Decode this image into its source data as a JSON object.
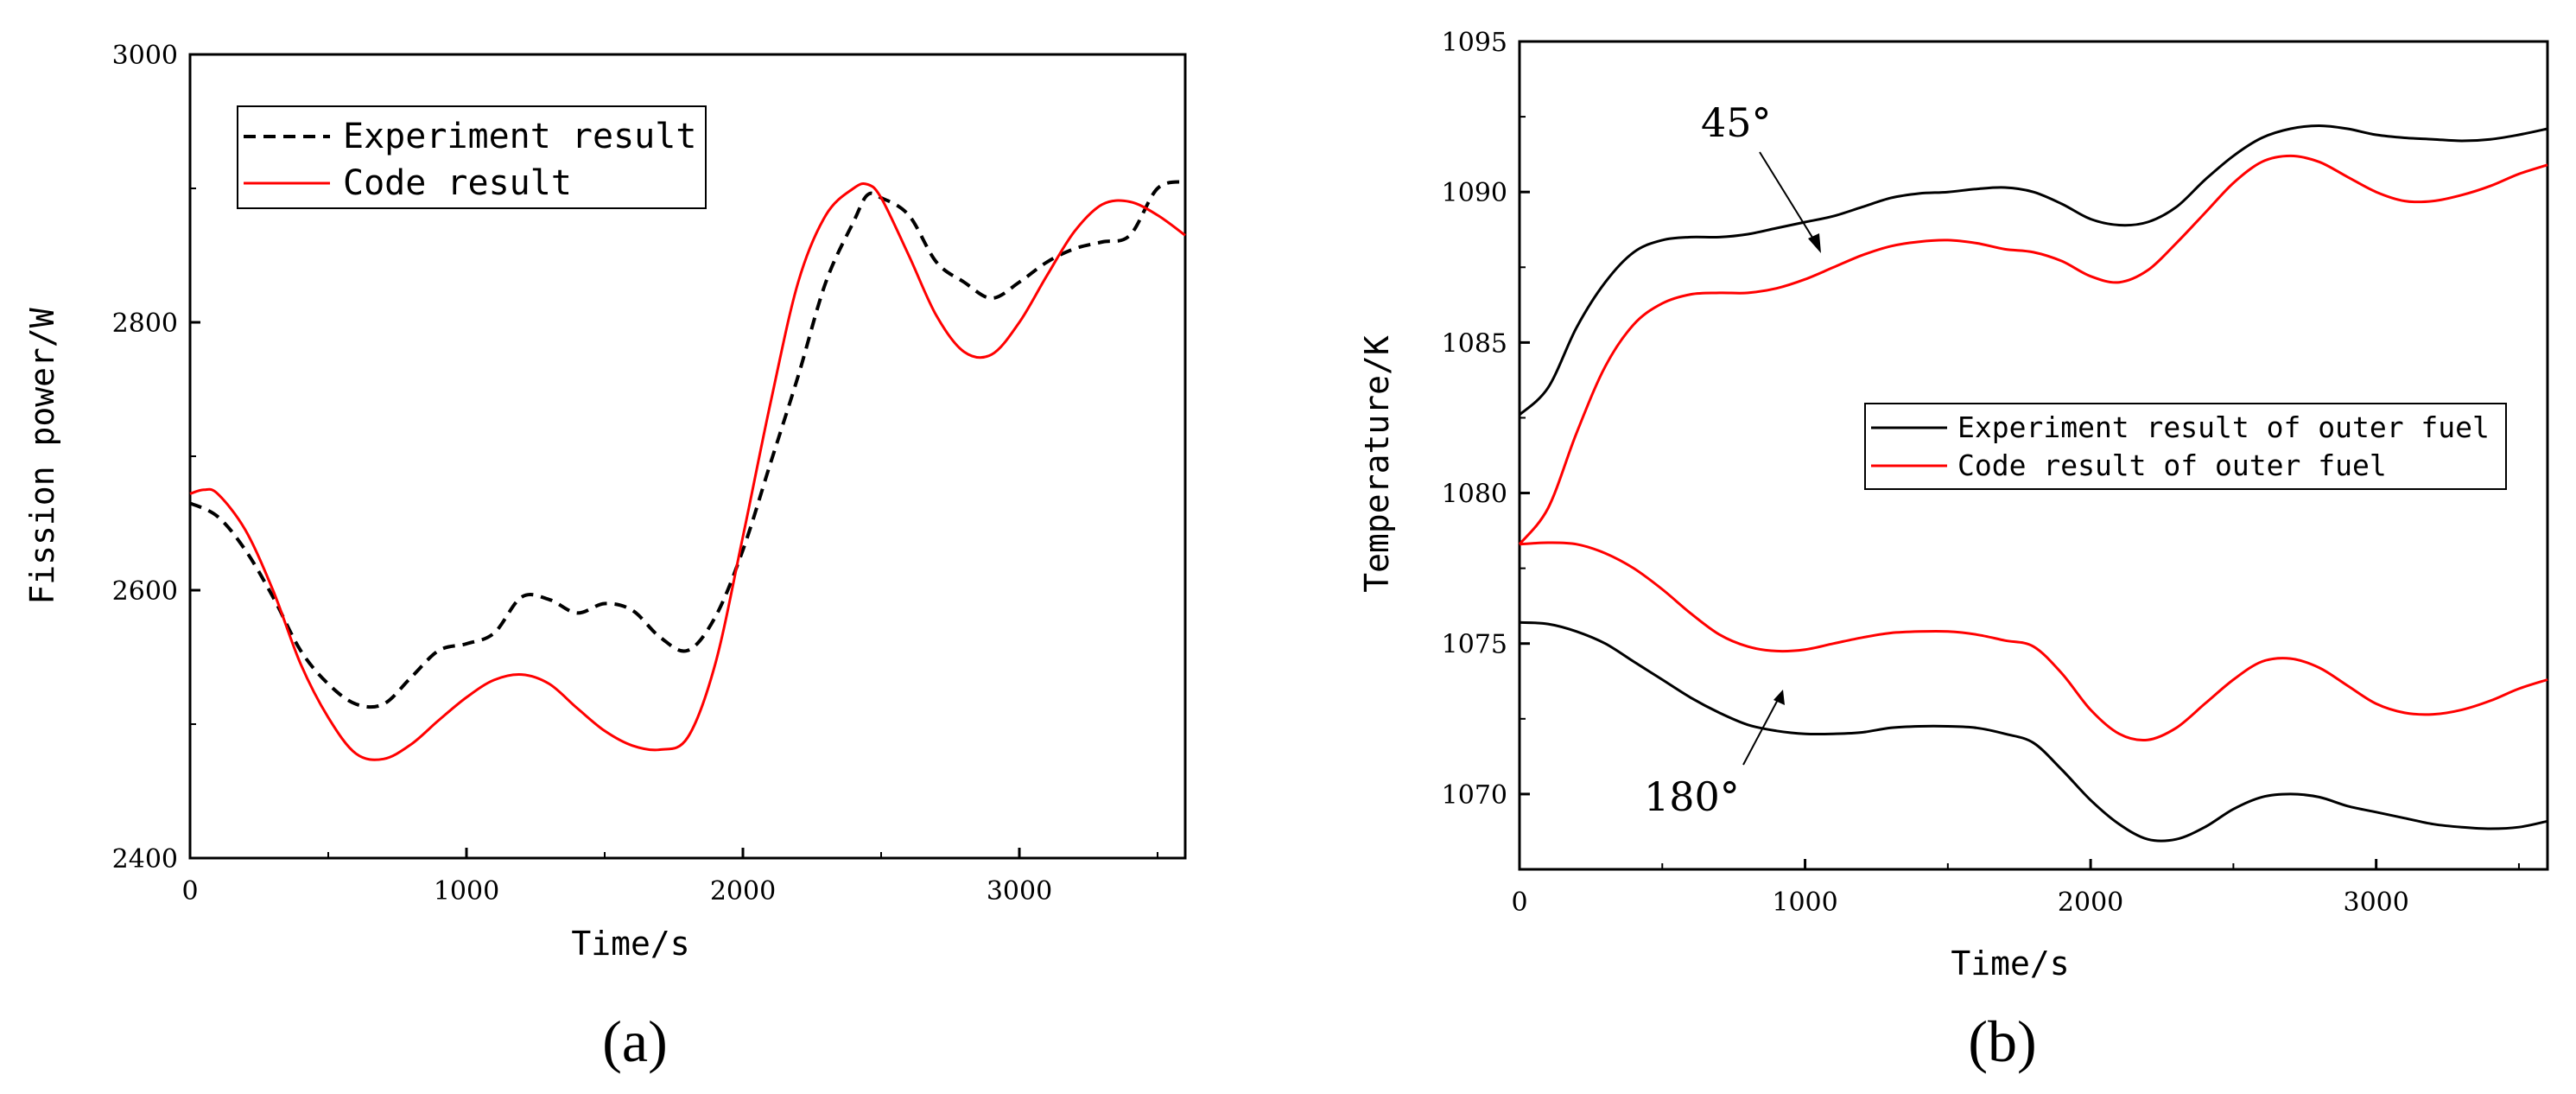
{
  "chart_data": [
    {
      "type": "line",
      "panel_label": "(a)",
      "xlabel": "Time/s",
      "ylabel": "Fission power/W",
      "xlim": [
        0,
        3600
      ],
      "ylim": [
        2400,
        3000
      ],
      "xticks": [
        "0",
        "1000",
        "2000",
        "3000"
      ],
      "yticks": [
        "2400",
        "2600",
        "2800",
        "3000"
      ],
      "grid": false,
      "legend_position": "top-left",
      "series": [
        {
          "name": "Experiment result",
          "color": "#000000",
          "style": "dashed",
          "x": [
            0,
            100,
            200,
            300,
            400,
            500,
            600,
            700,
            800,
            900,
            1000,
            1100,
            1200,
            1300,
            1400,
            1500,
            1600,
            1700,
            1800,
            1900,
            2000,
            2100,
            2200,
            2300,
            2400,
            2450,
            2500,
            2600,
            2700,
            2800,
            2900,
            3000,
            3100,
            3200,
            3300,
            3400,
            3500,
            3600
          ],
          "values": [
            2665,
            2655,
            2630,
            2595,
            2555,
            2530,
            2515,
            2515,
            2535,
            2555,
            2560,
            2568,
            2595,
            2593,
            2583,
            2590,
            2585,
            2565,
            2555,
            2580,
            2630,
            2695,
            2760,
            2830,
            2875,
            2895,
            2893,
            2880,
            2845,
            2830,
            2818,
            2830,
            2845,
            2855,
            2860,
            2865,
            2900,
            2905
          ]
        },
        {
          "name": "Code result",
          "color": "#ff0000",
          "style": "solid",
          "x": [
            0,
            50,
            100,
            200,
            300,
            400,
            500,
            600,
            700,
            800,
            900,
            1000,
            1100,
            1200,
            1300,
            1400,
            1500,
            1600,
            1700,
            1800,
            1900,
            2000,
            2100,
            2200,
            2300,
            2400,
            2450,
            2500,
            2600,
            2700,
            2800,
            2900,
            3000,
            3100,
            3200,
            3300,
            3400,
            3500,
            3600
          ],
          "values": [
            2672,
            2675,
            2672,
            2645,
            2600,
            2545,
            2505,
            2478,
            2474,
            2485,
            2503,
            2520,
            2533,
            2537,
            2530,
            2512,
            2495,
            2484,
            2481,
            2490,
            2545,
            2640,
            2740,
            2830,
            2880,
            2900,
            2903,
            2893,
            2850,
            2805,
            2778,
            2776,
            2800,
            2835,
            2868,
            2888,
            2890,
            2880,
            2865
          ]
        }
      ]
    },
    {
      "type": "line",
      "panel_label": "(b)",
      "xlabel": "Time/s",
      "ylabel": "Temperature/K",
      "xlim": [
        0,
        3600
      ],
      "ylim": [
        1067.5,
        1095
      ],
      "xticks": [
        "0",
        "1000",
        "2000",
        "3000"
      ],
      "yticks": [
        "1070",
        "1075",
        "1080",
        "1085",
        "1090",
        "1095"
      ],
      "grid": false,
      "legend_position": "right-center",
      "annotations": [
        "45°",
        "180°"
      ],
      "series": [
        {
          "name": "Experiment result of outer fuel",
          "color": "#000000",
          "style": "solid",
          "group": "45°",
          "x": [
            0,
            100,
            200,
            300,
            400,
            500,
            600,
            700,
            800,
            900,
            1000,
            1100,
            1200,
            1300,
            1400,
            1500,
            1600,
            1700,
            1800,
            1900,
            2000,
            2100,
            2200,
            2300,
            2400,
            2500,
            2600,
            2700,
            2800,
            2900,
            3000,
            3100,
            3200,
            3300,
            3400,
            3500,
            3600
          ],
          "values": [
            1082.6,
            1083.5,
            1085.5,
            1087.0,
            1088.0,
            1088.4,
            1088.5,
            1088.5,
            1088.6,
            1088.8,
            1089.0,
            1089.2,
            1089.5,
            1089.8,
            1089.95,
            1090.0,
            1090.1,
            1090.15,
            1090.0,
            1089.6,
            1089.1,
            1088.9,
            1089.0,
            1089.5,
            1090.4,
            1091.2,
            1091.8,
            1092.1,
            1092.2,
            1092.1,
            1091.9,
            1091.8,
            1091.75,
            1091.7,
            1091.75,
            1091.9,
            1092.1
          ]
        },
        {
          "name": "Code result of outer fuel",
          "color": "#ff0000",
          "style": "solid",
          "group": "45°",
          "x": [
            0,
            100,
            200,
            300,
            400,
            500,
            600,
            700,
            800,
            900,
            1000,
            1100,
            1200,
            1300,
            1400,
            1500,
            1600,
            1700,
            1800,
            1900,
            2000,
            2100,
            2200,
            2300,
            2400,
            2500,
            2600,
            2700,
            2800,
            2900,
            3000,
            3100,
            3200,
            3300,
            3400,
            3500,
            3600
          ],
          "values": [
            1078.3,
            1079.5,
            1082.0,
            1084.2,
            1085.6,
            1086.3,
            1086.6,
            1086.65,
            1086.65,
            1086.8,
            1087.1,
            1087.5,
            1087.9,
            1088.2,
            1088.35,
            1088.4,
            1088.3,
            1088.1,
            1088.0,
            1087.7,
            1087.2,
            1087.0,
            1087.4,
            1088.3,
            1089.3,
            1090.3,
            1091.0,
            1091.2,
            1091.0,
            1090.5,
            1090.0,
            1089.7,
            1089.7,
            1089.9,
            1090.2,
            1090.6,
            1090.9
          ]
        },
        {
          "name": "Experiment result of outer fuel",
          "color": "#000000",
          "style": "solid",
          "group": "180°",
          "x": [
            0,
            100,
            200,
            300,
            400,
            500,
            600,
            700,
            800,
            900,
            1000,
            1100,
            1200,
            1300,
            1400,
            1500,
            1600,
            1700,
            1800,
            1900,
            2000,
            2100,
            2200,
            2300,
            2400,
            2500,
            2600,
            2700,
            2800,
            2900,
            3000,
            3100,
            3200,
            3300,
            3400,
            3500,
            3600
          ],
          "values": [
            1075.7,
            1075.65,
            1075.4,
            1075.0,
            1074.4,
            1073.8,
            1073.2,
            1072.7,
            1072.3,
            1072.1,
            1072.0,
            1072.0,
            1072.05,
            1072.2,
            1072.25,
            1072.25,
            1072.2,
            1072.0,
            1071.7,
            1070.8,
            1069.8,
            1069.0,
            1068.5,
            1068.5,
            1068.9,
            1069.5,
            1069.9,
            1070.0,
            1069.9,
            1069.6,
            1069.4,
            1069.2,
            1069.0,
            1068.9,
            1068.85,
            1068.9,
            1069.1
          ]
        },
        {
          "name": "Code result of outer fuel",
          "color": "#ff0000",
          "style": "solid",
          "group": "180°",
          "x": [
            0,
            100,
            200,
            300,
            400,
            500,
            600,
            700,
            800,
            900,
            1000,
            1100,
            1200,
            1300,
            1400,
            1500,
            1600,
            1700,
            1800,
            1900,
            2000,
            2100,
            2200,
            2300,
            2400,
            2500,
            2600,
            2700,
            2800,
            2900,
            3000,
            3100,
            3200,
            3300,
            3400,
            3500,
            3600
          ],
          "values": [
            1078.3,
            1078.35,
            1078.3,
            1078.0,
            1077.5,
            1076.8,
            1076.0,
            1075.3,
            1074.9,
            1074.75,
            1074.8,
            1075.0,
            1075.2,
            1075.35,
            1075.4,
            1075.4,
            1075.3,
            1075.1,
            1074.9,
            1074.0,
            1072.8,
            1072.0,
            1071.8,
            1072.2,
            1073.0,
            1073.8,
            1074.4,
            1074.5,
            1074.2,
            1073.6,
            1073.0,
            1072.7,
            1072.65,
            1072.8,
            1073.1,
            1073.5,
            1073.8
          ]
        }
      ]
    }
  ]
}
